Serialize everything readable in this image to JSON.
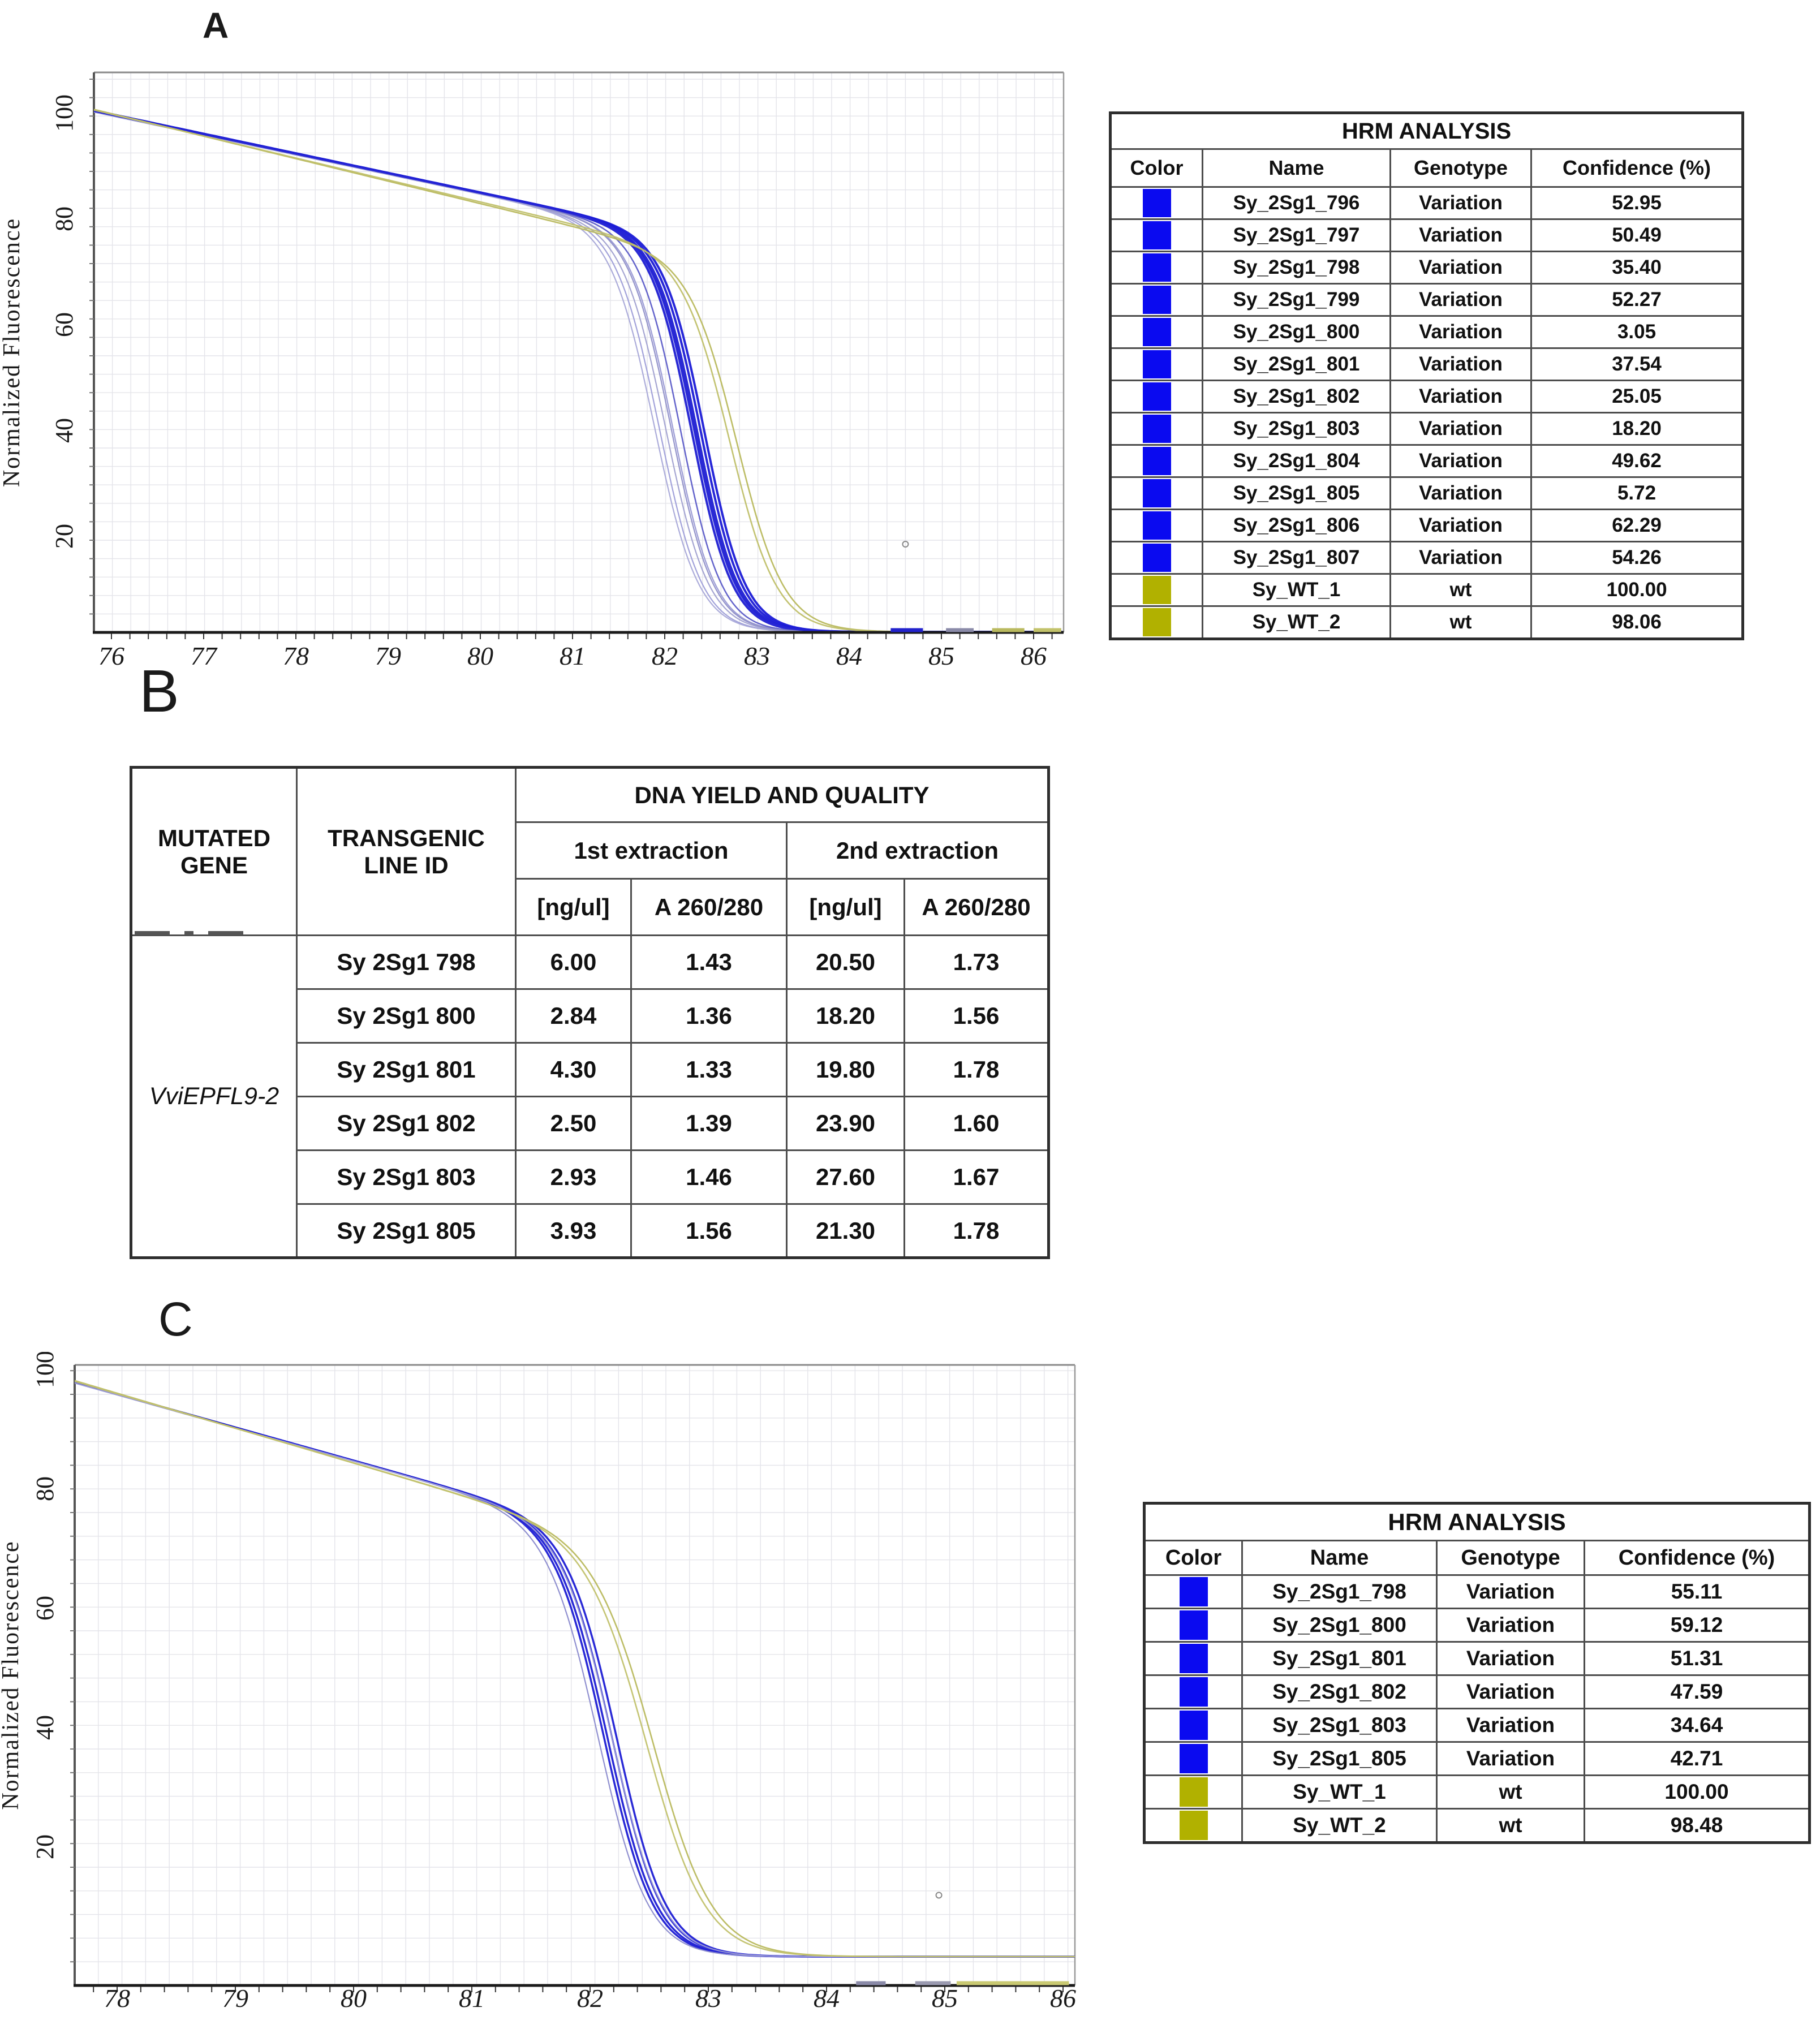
{
  "figure": {
    "panels": [
      {
        "id": "A",
        "label": "A"
      },
      {
        "id": "B",
        "label": "B"
      },
      {
        "id": "C",
        "label": "C"
      }
    ]
  },
  "colors": {
    "variation_blue": "#0a0af0",
    "wt_olive": "#b1b100",
    "curve_blue": "#1f1fd2",
    "curve_olive": "#b9b95e",
    "grid": "#e4e4ea",
    "axis": "#1a1a1a",
    "table_border": "#4d4d4d"
  },
  "hrm_table_a": {
    "title": "HRM ANALYSIS",
    "columns": [
      "Color",
      "Name",
      "Genotype",
      "Confidence (%)"
    ],
    "rows": [
      {
        "color": "#0a0af0",
        "name": "Sy_2Sg1_796",
        "genotype": "Variation",
        "confidence": "52.95"
      },
      {
        "color": "#0a0af0",
        "name": "Sy_2Sg1_797",
        "genotype": "Variation",
        "confidence": "50.49"
      },
      {
        "color": "#0a0af0",
        "name": "Sy_2Sg1_798",
        "genotype": "Variation",
        "confidence": "35.40"
      },
      {
        "color": "#0a0af0",
        "name": "Sy_2Sg1_799",
        "genotype": "Variation",
        "confidence": "52.27"
      },
      {
        "color": "#0a0af0",
        "name": "Sy_2Sg1_800",
        "genotype": "Variation",
        "confidence": "3.05"
      },
      {
        "color": "#0a0af0",
        "name": "Sy_2Sg1_801",
        "genotype": "Variation",
        "confidence": "37.54"
      },
      {
        "color": "#0a0af0",
        "name": "Sy_2Sg1_802",
        "genotype": "Variation",
        "confidence": "25.05"
      },
      {
        "color": "#0a0af0",
        "name": "Sy_2Sg1_803",
        "genotype": "Variation",
        "confidence": "18.20"
      },
      {
        "color": "#0a0af0",
        "name": "Sy_2Sg1_804",
        "genotype": "Variation",
        "confidence": "49.62"
      },
      {
        "color": "#0a0af0",
        "name": "Sy_2Sg1_805",
        "genotype": "Variation",
        "confidence": "5.72"
      },
      {
        "color": "#0a0af0",
        "name": "Sy_2Sg1_806",
        "genotype": "Variation",
        "confidence": "62.29"
      },
      {
        "color": "#0a0af0",
        "name": "Sy_2Sg1_807",
        "genotype": "Variation",
        "confidence": "54.26"
      },
      {
        "color": "#b1b100",
        "name": "Sy_WT_1",
        "genotype": "wt",
        "confidence": "100.00"
      },
      {
        "color": "#b1b100",
        "name": "Sy_WT_2",
        "genotype": "wt",
        "confidence": "98.06"
      }
    ]
  },
  "dna_table": {
    "header": {
      "mutated_gene": "MUTATED GENE",
      "line_id": "TRANSGENIC LINE ID",
      "group": "DNA YIELD AND QUALITY",
      "ext1": "1st extraction",
      "ext2": "2nd extraction",
      "unit_conc": "[ng/ul]",
      "unit_ratio": "A 260/280"
    },
    "mutated_gene": "VviEPFL9-2",
    "rows": [
      {
        "line_id": "Sy 2Sg1 798",
        "ext1_conc": "6.00",
        "ext1_ratio": "1.43",
        "ext2_conc": "20.50",
        "ext2_ratio": "1.73"
      },
      {
        "line_id": "Sy 2Sg1 800",
        "ext1_conc": "2.84",
        "ext1_ratio": "1.36",
        "ext2_conc": "18.20",
        "ext2_ratio": "1.56"
      },
      {
        "line_id": "Sy 2Sg1 801",
        "ext1_conc": "4.30",
        "ext1_ratio": "1.33",
        "ext2_conc": "19.80",
        "ext2_ratio": "1.78"
      },
      {
        "line_id": "Sy 2Sg1 802",
        "ext1_conc": "2.50",
        "ext1_ratio": "1.39",
        "ext2_conc": "23.90",
        "ext2_ratio": "1.60"
      },
      {
        "line_id": "Sy 2Sg1 803",
        "ext1_conc": "2.93",
        "ext1_ratio": "1.46",
        "ext2_conc": "27.60",
        "ext2_ratio": "1.67"
      },
      {
        "line_id": "Sy 2Sg1 805",
        "ext1_conc": "3.93",
        "ext1_ratio": "1.56",
        "ext2_conc": "21.30",
        "ext2_ratio": "1.78"
      }
    ]
  },
  "hrm_table_c": {
    "title": "HRM ANALYSIS",
    "columns": [
      "Color",
      "Name",
      "Genotype",
      "Confidence (%)"
    ],
    "rows": [
      {
        "color": "#0a0af0",
        "name": "Sy_2Sg1_798",
        "genotype": "Variation",
        "confidence": "55.11"
      },
      {
        "color": "#0a0af0",
        "name": "Sy_2Sg1_800",
        "genotype": "Variation",
        "confidence": "59.12"
      },
      {
        "color": "#0a0af0",
        "name": "Sy_2Sg1_801",
        "genotype": "Variation",
        "confidence": "51.31"
      },
      {
        "color": "#0a0af0",
        "name": "Sy_2Sg1_802",
        "genotype": "Variation",
        "confidence": "47.59"
      },
      {
        "color": "#0a0af0",
        "name": "Sy_2Sg1_803",
        "genotype": "Variation",
        "confidence": "34.64"
      },
      {
        "color": "#0a0af0",
        "name": "Sy_2Sg1_805",
        "genotype": "Variation",
        "confidence": "42.71"
      },
      {
        "color": "#b1b100",
        "name": "Sy_WT_1",
        "genotype": "wt",
        "confidence": "100.00"
      },
      {
        "color": "#b1b100",
        "name": "Sy_WT_2",
        "genotype": "wt",
        "confidence": "98.48"
      }
    ]
  },
  "chart_data": [
    {
      "id": "chartA",
      "type": "line",
      "title": "",
      "xlabel": "",
      "ylabel": "Normalized Fluorescence",
      "xlim": [
        75.81,
        86.32
      ],
      "ylim": [
        0,
        107.5
      ],
      "x_ticks": [
        76,
        77,
        78,
        79,
        80,
        81,
        82,
        83,
        84,
        85,
        86
      ],
      "y_ticks": [
        20,
        40,
        60,
        80,
        100
      ],
      "grid": true,
      "legend_position": "none (legend is the HRM ANALYSIS table)",
      "curve_model": "y = floor + (y0 - drift*(x - xmin)) / (1 + exp(k*(x - melt_tm)))",
      "floor": 1.9,
      "series": [
        {
          "name": "Sy_2Sg1_796",
          "genotype": "Variation",
          "color": "#1f1fd2",
          "width": 4.0,
          "melt_tm": 82.3,
          "y0": 100.4,
          "drift": 3.7,
          "k": 4.5
        },
        {
          "name": "Sy_2Sg1_797",
          "genotype": "Variation",
          "color": "#1f1fd2",
          "width": 4.0,
          "melt_tm": 82.36,
          "y0": 100.4,
          "drift": 3.7,
          "k": 4.5
        },
        {
          "name": "Sy_2Sg1_798",
          "genotype": "Variation",
          "color": "#9898d4",
          "width": 2.2,
          "melt_tm": 82.1,
          "y0": 100.3,
          "drift": 3.7,
          "k": 4.4
        },
        {
          "name": "Sy_2Sg1_799",
          "genotype": "Variation",
          "color": "#2a2ad8",
          "width": 3.5,
          "melt_tm": 82.33,
          "y0": 100.4,
          "drift": 3.7,
          "k": 4.5
        },
        {
          "name": "Sy_2Sg1_800",
          "genotype": "Variation",
          "color": "#9d9dd8",
          "width": 2.2,
          "melt_tm": 81.95,
          "y0": 100.2,
          "drift": 3.7,
          "k": 4.3
        },
        {
          "name": "Sy_2Sg1_801",
          "genotype": "Variation",
          "color": "#5c5cc8",
          "width": 2.5,
          "melt_tm": 82.18,
          "y0": 100.3,
          "drift": 3.7,
          "k": 4.5
        },
        {
          "name": "Sy_2Sg1_802",
          "genotype": "Variation",
          "color": "#a0a0d0",
          "width": 2.2,
          "melt_tm": 82.02,
          "y0": 100.2,
          "drift": 3.7,
          "k": 4.3
        },
        {
          "name": "Sy_2Sg1_803",
          "genotype": "Variation",
          "color": "#8f8fc8",
          "width": 2.2,
          "melt_tm": 82.08,
          "y0": 100.3,
          "drift": 3.7,
          "k": 4.4
        },
        {
          "name": "Sy_2Sg1_804",
          "genotype": "Variation",
          "color": "#1b1bd6",
          "width": 4.0,
          "melt_tm": 82.4,
          "y0": 100.5,
          "drift": 3.7,
          "k": 4.5
        },
        {
          "name": "Sy_2Sg1_805",
          "genotype": "Variation",
          "color": "#a8a8d8",
          "width": 2.2,
          "melt_tm": 81.9,
          "y0": 100.2,
          "drift": 3.7,
          "k": 4.2
        },
        {
          "name": "Sy_2Sg1_806",
          "genotype": "Variation",
          "color": "#1b1bd6",
          "width": 4.0,
          "melt_tm": 82.44,
          "y0": 100.5,
          "drift": 3.7,
          "k": 4.5
        },
        {
          "name": "Sy_2Sg1_807",
          "genotype": "Variation",
          "color": "#2525d4",
          "width": 3.5,
          "melt_tm": 82.34,
          "y0": 100.4,
          "drift": 3.7,
          "k": 4.5
        },
        {
          "name": "Sy_WT_1",
          "genotype": "wt",
          "color": "#b9b95e",
          "width": 2.6,
          "melt_tm": 82.8,
          "y0": 100.7,
          "drift": 4.25,
          "k": 3.9
        },
        {
          "name": "Sy_WT_2",
          "genotype": "wt",
          "color": "#c0c06a",
          "width": 2.6,
          "melt_tm": 82.72,
          "y0": 100.6,
          "drift": 4.15,
          "k": 3.9
        }
      ],
      "baseline_dashes": [
        {
          "x1": 84.45,
          "x2": 84.8,
          "color": "#2222cc"
        },
        {
          "x1": 85.05,
          "x2": 85.35,
          "color": "#8a8aa8"
        },
        {
          "x1": 85.55,
          "x2": 85.9,
          "color": "#b9b95e"
        },
        {
          "x1": 86.0,
          "x2": 86.3,
          "color": "#c2c26a"
        }
      ],
      "stray_dot": {
        "x": 84.61,
        "y": 18.5
      }
    },
    {
      "id": "chartC",
      "type": "line",
      "title": "",
      "xlabel": "",
      "ylabel": "Normalized Fluorescence",
      "xlim": [
        77.61,
        86.1
      ],
      "ylim": [
        0,
        103.5
      ],
      "x_ticks": [
        78,
        79,
        80,
        81,
        82,
        83,
        84,
        85,
        86
      ],
      "y_ticks": [
        20,
        40,
        60,
        80,
        100
      ],
      "grid": true,
      "legend_position": "none (legend is the HRM ANALYSIS table)",
      "curve_model": "y = floor + (y0 - drift*(x - xmin)) / (1 + exp(k*(x - melt_tm)))",
      "floor": 1.6,
      "series": [
        {
          "name": "Sy_2Sg1_798",
          "genotype": "Variation",
          "color": "#1d1dd4",
          "width": 3.5,
          "melt_tm": 82.16,
          "y0": 98.0,
          "drift": 5.55,
          "k": 4.8
        },
        {
          "name": "Sy_2Sg1_800",
          "genotype": "Variation",
          "color": "#1d1dd4",
          "width": 3.5,
          "melt_tm": 82.24,
          "y0": 98.0,
          "drift": 5.55,
          "k": 4.8
        },
        {
          "name": "Sy_2Sg1_801",
          "genotype": "Variation",
          "color": "#2e2ed8",
          "width": 3.0,
          "melt_tm": 82.2,
          "y0": 98.0,
          "drift": 5.55,
          "k": 4.8
        },
        {
          "name": "Sy_2Sg1_802",
          "genotype": "Variation",
          "color": "#1d1dd4",
          "width": 3.5,
          "melt_tm": 82.13,
          "y0": 98.0,
          "drift": 5.55,
          "k": 4.8
        },
        {
          "name": "Sy_2Sg1_803",
          "genotype": "Variation",
          "color": "#8a8ace",
          "width": 2.2,
          "melt_tm": 82.08,
          "y0": 97.9,
          "drift": 5.55,
          "k": 4.7
        },
        {
          "name": "Sy_2Sg1_805",
          "genotype": "Variation",
          "color": "#9a9ad4",
          "width": 2.2,
          "melt_tm": 82.2,
          "y0": 97.9,
          "drift": 5.55,
          "k": 4.7
        },
        {
          "name": "Sy_WT_1",
          "genotype": "wt",
          "color": "#b9b95e",
          "width": 2.6,
          "melt_tm": 82.56,
          "y0": 98.3,
          "drift": 5.85,
          "k": 4.0
        },
        {
          "name": "Sy_WT_2",
          "genotype": "wt",
          "color": "#c2c26e",
          "width": 2.6,
          "melt_tm": 82.5,
          "y0": 98.2,
          "drift": 5.8,
          "k": 4.0
        }
      ],
      "baseline_dashes": [
        {
          "x1": 84.25,
          "x2": 84.5,
          "color": "#8a8aa8"
        },
        {
          "x1": 84.75,
          "x2": 85.05,
          "color": "#9a9ab0"
        },
        {
          "x1": 85.5,
          "x2": 85.78,
          "color": "#8a8aa8"
        },
        {
          "x1": 85.1,
          "x2": 86.05,
          "color": "#c9c972"
        }
      ],
      "stray_dot": {
        "x": 84.95,
        "y": 11.9
      }
    }
  ]
}
